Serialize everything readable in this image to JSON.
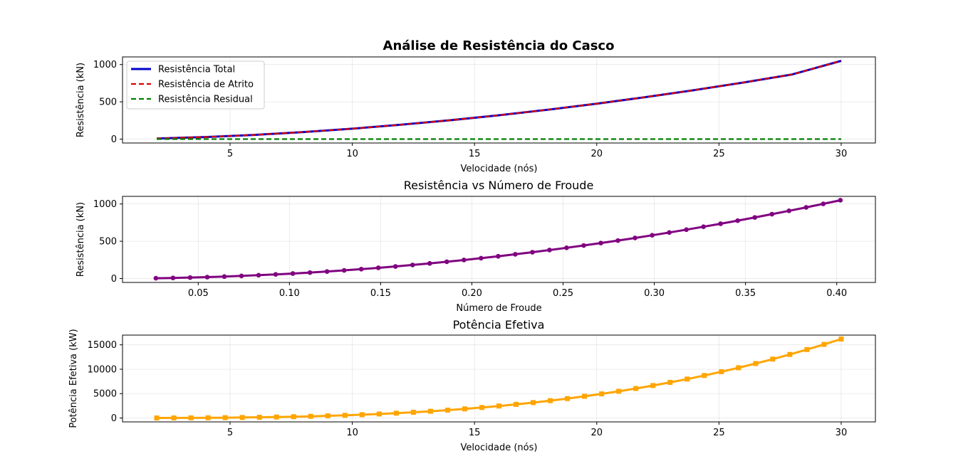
{
  "chart_data": [
    {
      "type": "line",
      "title": "Análise de Resistência do Casco",
      "xlabel": "Velocidade (nós)",
      "ylabel": "Resistência (kN)",
      "xlim": [
        0.6,
        31.4
      ],
      "ylim": [
        -52,
        1102
      ],
      "xticks": [
        5,
        10,
        15,
        20,
        25,
        30
      ],
      "yticks": [
        0,
        500,
        1000
      ],
      "legend_position": "upper-left",
      "series": [
        {
          "name": "Resistência Total",
          "color": "#0000cc",
          "style": "solid",
          "x": [
            2,
            4,
            6,
            8,
            10,
            12,
            14,
            16,
            18,
            20,
            22,
            24,
            26,
            28,
            30
          ],
          "y": [
            8,
            28,
            57,
            95,
            140,
            193,
            253,
            320,
            394,
            475,
            563,
            658,
            759,
            867,
            1050
          ]
        },
        {
          "name": "Resistência de Atrito",
          "color": "#dd0000",
          "style": "dashed",
          "x": [
            2,
            4,
            6,
            8,
            10,
            12,
            14,
            16,
            18,
            20,
            22,
            24,
            26,
            28,
            30
          ],
          "y": [
            8,
            28,
            57,
            95,
            140,
            193,
            253,
            320,
            394,
            475,
            563,
            658,
            759,
            867,
            1050
          ]
        },
        {
          "name": "Resistência Residual",
          "color": "#008000",
          "style": "dashed",
          "x": [
            2,
            30
          ],
          "y": [
            0,
            0
          ]
        }
      ]
    },
    {
      "type": "line",
      "title": "Resistência vs Número de Froude",
      "xlabel": "Número de Froude",
      "ylabel": "Resistência (kN)",
      "xlim": [
        0.0085,
        0.4212
      ],
      "ylim": [
        -52,
        1102
      ],
      "xticks": [
        0.05,
        0.1,
        0.15,
        0.2,
        0.25,
        0.3,
        0.35,
        0.4
      ],
      "xtick_labels": [
        "0.05",
        "0.10",
        "0.15",
        "0.20",
        "0.25",
        "0.30",
        "0.35",
        "0.40"
      ],
      "yticks": [
        0,
        500,
        1000
      ],
      "marker": "circle",
      "series": [
        {
          "name": "Resistência",
          "color": "#800080",
          "froude_per_knot": 0.0134,
          "speed_knots": [
            2,
            2.7,
            3.4,
            4.1,
            4.8,
            5.5,
            6.2,
            6.9,
            7.6,
            8.3,
            9,
            9.7,
            10.4,
            11.1,
            11.8,
            12.5,
            13.2,
            13.9,
            14.6,
            15.3,
            16,
            16.7,
            17.4,
            18.1,
            18.8,
            19.5,
            20.2,
            20.9,
            21.6,
            22.3,
            23,
            23.7,
            24.4,
            25.1,
            25.8,
            26.5,
            27.2,
            27.9,
            28.6,
            29.3,
            30
          ],
          "resistance_at_30_knots": 1050
        }
      ]
    },
    {
      "type": "line",
      "title": "Potência Efetiva",
      "xlabel": "Velocidade (nós)",
      "ylabel": "Potência Efetiva (kW)",
      "xlim": [
        0.6,
        31.4
      ],
      "ylim": [
        -800,
        17000
      ],
      "xticks": [
        5,
        10,
        15,
        20,
        25,
        30
      ],
      "yticks": [
        0,
        5000,
        10000,
        15000
      ],
      "marker": "square",
      "series": [
        {
          "name": "Potência",
          "color": "#ffa500",
          "x": [
            2,
            2.7,
            3.4,
            4.1,
            4.8,
            5.5,
            6.2,
            6.9,
            7.6,
            8.3,
            9,
            9.7,
            10.4,
            11.1,
            11.8,
            12.5,
            13.2,
            13.9,
            14.6,
            15.3,
            16,
            16.7,
            17.4,
            18.1,
            18.8,
            19.5,
            20.2,
            20.9,
            21.6,
            22.3,
            23,
            23.7,
            24.4,
            25.1,
            25.8,
            26.5,
            27.2,
            27.9,
            28.6,
            29.3,
            30
          ],
          "power_at_30_knots": 16200,
          "growth": "cubic"
        }
      ]
    }
  ]
}
